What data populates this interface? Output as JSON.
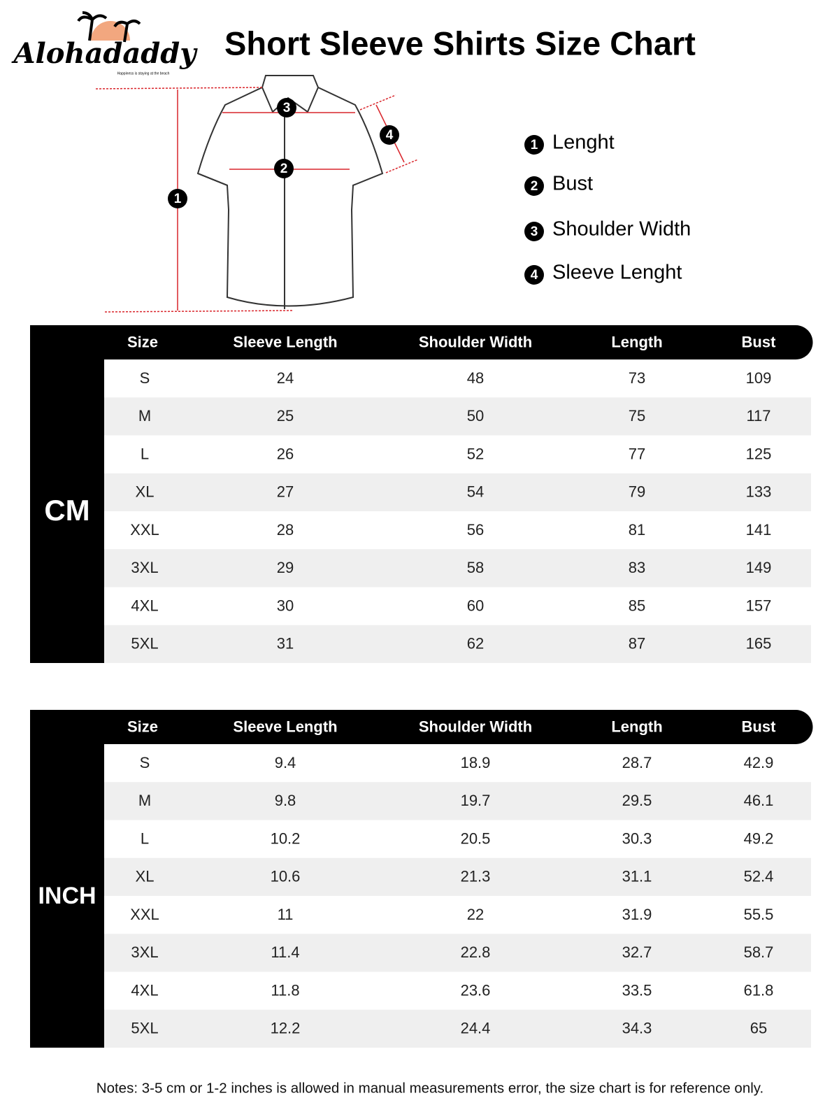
{
  "header": {
    "logo": "Alohadaddy",
    "tagline": "Happiness is staying at the beach",
    "title": "Short Sleeve Shirts Size Chart"
  },
  "legend": [
    {
      "number": "1",
      "label": "Lenght"
    },
    {
      "number": "2",
      "label": "Bust"
    },
    {
      "number": "3",
      "label": "Shoulder Width"
    },
    {
      "number": "4",
      "label": "Sleeve Lenght"
    }
  ],
  "tables": [
    {
      "unit": "CM",
      "columns": [
        "Size",
        "Sleeve Length",
        "Shoulder Width",
        "Length",
        "Bust"
      ],
      "rows": [
        [
          "S",
          "24",
          "48",
          "73",
          "109"
        ],
        [
          "M",
          "25",
          "50",
          "75",
          "117"
        ],
        [
          "L",
          "26",
          "52",
          "77",
          "125"
        ],
        [
          "XL",
          "27",
          "54",
          "79",
          "133"
        ],
        [
          "XXL",
          "28",
          "56",
          "81",
          "141"
        ],
        [
          "3XL",
          "29",
          "58",
          "83",
          "149"
        ],
        [
          "4XL",
          "30",
          "60",
          "85",
          "157"
        ],
        [
          "5XL",
          "31",
          "62",
          "87",
          "165"
        ]
      ]
    },
    {
      "unit": "INCH",
      "columns": [
        "Size",
        "Sleeve Length",
        "Shoulder Width",
        "Length",
        "Bust"
      ],
      "rows": [
        [
          "S",
          "9.4",
          "18.9",
          "28.7",
          "42.9"
        ],
        [
          "M",
          "9.8",
          "19.7",
          "29.5",
          "46.1"
        ],
        [
          "L",
          "10.2",
          "20.5",
          "30.3",
          "49.2"
        ],
        [
          "XL",
          "10.6",
          "21.3",
          "31.1",
          "52.4"
        ],
        [
          "XXL",
          "11",
          "22",
          "31.9",
          "55.5"
        ],
        [
          "3XL",
          "11.4",
          "22.8",
          "32.7",
          "58.7"
        ],
        [
          "4XL",
          "11.8",
          "23.6",
          "33.5",
          "61.8"
        ],
        [
          "5XL",
          "12.2",
          "24.4",
          "34.3",
          "65"
        ]
      ]
    }
  ],
  "notes": "Notes: 3-5 cm or 1-2 inches is allowed in manual measurements error, the size chart is for reference only."
}
